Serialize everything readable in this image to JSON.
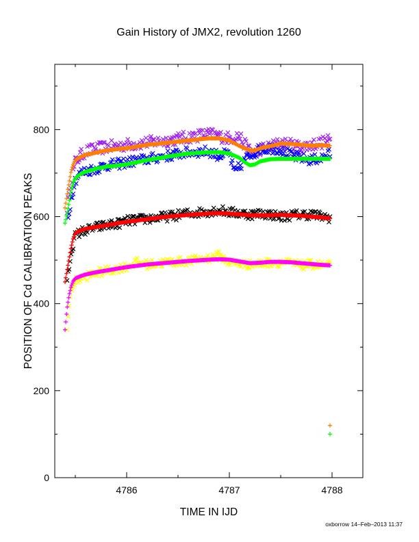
{
  "chart_data": {
    "type": "scatter",
    "title": "Gain History of JMX2, revolution 1260",
    "xlabel": "TIME IN IJD",
    "ylabel": "POSITION OF Cd CALIBRATION PEAKS",
    "xlim": [
      4785.3,
      4788.3
    ],
    "ylim": [
      0,
      950
    ],
    "x_ticks": [
      "4786",
      "4787",
      "4788"
    ],
    "y_ticks": [
      "0",
      "200",
      "400",
      "600",
      "800"
    ],
    "grid": false,
    "footer": "oxborrow 14–Feb–2013 11:37",
    "series": [
      {
        "color": "#a020f0",
        "marker": "x",
        "noise": 14,
        "x": [
          4785.42,
          4785.46,
          4785.5,
          4785.55,
          4785.6,
          4785.7,
          4785.8,
          4785.9,
          4786.0,
          4786.2,
          4786.4,
          4786.6,
          4786.8,
          4786.9,
          4787.0,
          4787.05,
          4787.1,
          4787.15,
          4787.2,
          4787.25,
          4787.3,
          4787.4,
          4787.5,
          4787.6,
          4787.7,
          4787.8,
          4787.9,
          4787.98
        ],
        "y": [
          620,
          680,
          725,
          740,
          750,
          755,
          760,
          762,
          765,
          770,
          775,
          783,
          790,
          785,
          780,
          785,
          785,
          765,
          750,
          748,
          755,
          760,
          770,
          765,
          760,
          765,
          770,
          775
        ]
      },
      {
        "color": "#0000ff",
        "marker": "x",
        "noise": 12,
        "x": [
          4785.43,
          4785.47,
          4785.5,
          4785.55,
          4785.6,
          4785.7,
          4785.8,
          4785.9,
          4786.0,
          4786.2,
          4786.4,
          4786.6,
          4786.8,
          4786.9,
          4787.0,
          4787.05,
          4787.1,
          4787.15,
          4787.2,
          4787.3,
          4787.4,
          4787.5,
          4787.6,
          4787.7,
          4787.8,
          4787.9,
          4787.98
        ],
        "y": [
          600,
          655,
          685,
          700,
          705,
          710,
          718,
          720,
          725,
          732,
          740,
          748,
          750,
          740,
          745,
          700,
          715,
          730,
          740,
          755,
          758,
          755,
          740,
          735,
          730,
          735,
          745
        ]
      },
      {
        "color": "#ff7f00",
        "marker": "+",
        "noise": 0,
        "x": [
          4785.4,
          4785.43,
          4785.46,
          4785.48,
          4785.5,
          4785.55,
          4785.6,
          4785.7,
          4785.8,
          4785.9,
          4786.0,
          4786.2,
          4786.4,
          4786.6,
          4786.8,
          4786.9,
          4787.0,
          4787.1,
          4787.2,
          4787.25,
          4787.3,
          4787.4,
          4787.5,
          4787.6,
          4787.7,
          4787.8,
          4787.9,
          4787.98
        ],
        "y": [
          620,
          665,
          705,
          720,
          730,
          737,
          742,
          747,
          752,
          755,
          757,
          765,
          770,
          775,
          780,
          780,
          775,
          762,
          752,
          752,
          757,
          762,
          768,
          767,
          765,
          763,
          764,
          763
        ]
      },
      {
        "color": "#00ff00",
        "marker": "+",
        "noise": 0,
        "x": [
          4785.4,
          4785.43,
          4785.46,
          4785.48,
          4785.5,
          4785.55,
          4785.6,
          4785.7,
          4785.8,
          4785.9,
          4786.0,
          4786.2,
          4786.4,
          4786.6,
          4786.8,
          4786.9,
          4787.0,
          4787.1,
          4787.15,
          4787.2,
          4787.25,
          4787.3,
          4787.4,
          4787.5,
          4787.6,
          4787.7,
          4787.8,
          4787.9,
          4787.98
        ],
        "y": [
          585,
          620,
          660,
          678,
          688,
          698,
          703,
          710,
          715,
          717,
          720,
          730,
          738,
          745,
          748,
          748,
          745,
          735,
          725,
          718,
          720,
          727,
          732,
          733,
          733,
          733,
          733,
          733,
          733
        ]
      },
      {
        "color": "#000000",
        "marker": "x",
        "noise": 11,
        "x": [
          4785.42,
          4785.46,
          4785.5,
          4785.55,
          4785.6,
          4785.7,
          4785.8,
          4785.9,
          4786.0,
          4786.2,
          4786.4,
          4786.6,
          4786.8,
          4786.9,
          4787.0,
          4787.1,
          4787.2,
          4787.3,
          4787.4,
          4787.5,
          4787.6,
          4787.7,
          4787.8,
          4787.9,
          4787.98
        ],
        "y": [
          450,
          520,
          555,
          565,
          568,
          575,
          580,
          583,
          590,
          595,
          600,
          607,
          612,
          615,
          610,
          608,
          605,
          607,
          605,
          600,
          603,
          605,
          605,
          600,
          598
        ]
      },
      {
        "color": "#ff0000",
        "marker": "+",
        "noise": 0,
        "x": [
          4785.4,
          4785.43,
          4785.46,
          4785.48,
          4785.5,
          4785.55,
          4785.6,
          4785.7,
          4785.8,
          4785.9,
          4786.0,
          4786.2,
          4786.4,
          4786.6,
          4786.8,
          4786.9,
          4787.0,
          4787.1,
          4787.2,
          4787.3,
          4787.4,
          4787.5,
          4787.6,
          4787.7,
          4787.8,
          4787.9,
          4787.98
        ],
        "y": [
          450,
          490,
          530,
          550,
          562,
          568,
          572,
          576,
          580,
          584,
          588,
          594,
          600,
          604,
          607,
          608,
          607,
          605,
          603,
          603,
          603,
          604,
          603,
          602,
          600,
          598,
          596
        ]
      },
      {
        "color": "#ffff00",
        "marker": "x",
        "noise": 10,
        "x": [
          4785.42,
          4785.45,
          4785.48,
          4785.52,
          4785.6,
          4785.7,
          4785.8,
          4785.9,
          4786.0,
          4786.1,
          4786.2,
          4786.4,
          4786.6,
          4786.8,
          4786.9,
          4787.0,
          4787.1,
          4787.2,
          4787.3,
          4787.4,
          4787.5,
          4787.6,
          4787.7,
          4787.8,
          4787.9,
          4787.98
        ],
        "y": [
          340,
          420,
          445,
          455,
          462,
          470,
          475,
          480,
          485,
          495,
          490,
          495,
          498,
          505,
          510,
          495,
          492,
          490,
          492,
          495,
          495,
          492,
          488,
          490,
          488,
          487
        ]
      },
      {
        "color": "#ff00ff",
        "marker": "+",
        "noise": 0,
        "x": [
          4785.4,
          4785.42,
          4785.44,
          4785.46,
          4785.48,
          4785.5,
          4785.55,
          4785.6,
          4785.7,
          4785.8,
          4785.9,
          4786.0,
          4786.2,
          4786.4,
          4786.6,
          4786.8,
          4786.9,
          4787.0,
          4787.1,
          4787.2,
          4787.3,
          4787.4,
          4787.5,
          4787.6,
          4787.7,
          4787.8,
          4787.9,
          4787.98
        ],
        "y": [
          340,
          390,
          420,
          440,
          452,
          458,
          463,
          467,
          472,
          476,
          480,
          484,
          490,
          494,
          498,
          501,
          502,
          501,
          497,
          493,
          494,
          496,
          496,
          495,
          493,
          491,
          489,
          488
        ]
      }
    ],
    "isolated_points": [
      {
        "color": "#ff7f00",
        "marker": "+",
        "x": 4787.98,
        "y": 120
      },
      {
        "color": "#00ff00",
        "marker": "+",
        "x": 4787.98,
        "y": 100
      }
    ]
  }
}
